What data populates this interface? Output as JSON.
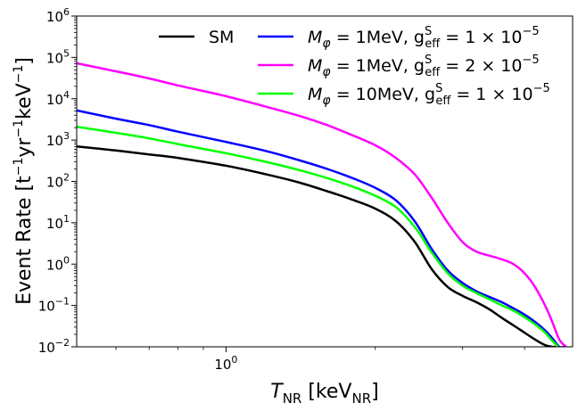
{
  "chart_data": {
    "type": "line",
    "title": "",
    "xlabel": "T_NR [keV_NR]",
    "xlabel_parts": {
      "var": "T",
      "var_sub": "NR",
      "unit": "keV",
      "unit_sub": "NR"
    },
    "ylabel": "Event Rate [t^-1 yr^-1 keV^-1]",
    "xscale": "log",
    "yscale": "log",
    "xlim": [
      0.5,
      5.0
    ],
    "ylim": [
      0.01,
      1000000
    ],
    "x_major_ticks": [
      {
        "value": 1,
        "label": "10",
        "sup": "0"
      }
    ],
    "y_major_ticks": [
      {
        "value": 0.01,
        "label": "10",
        "sup": "−2"
      },
      {
        "value": 0.1,
        "label": "10",
        "sup": "−1"
      },
      {
        "value": 1,
        "label": "10",
        "sup": "0"
      },
      {
        "value": 10,
        "label": "10",
        "sup": "1"
      },
      {
        "value": 100,
        "label": "10",
        "sup": "2"
      },
      {
        "value": 1000,
        "label": "10",
        "sup": "3"
      },
      {
        "value": 10000,
        "label": "10",
        "sup": "4"
      },
      {
        "value": 100000,
        "label": "10",
        "sup": "5"
      },
      {
        "value": 1000000,
        "label": "10",
        "sup": "6"
      }
    ],
    "legend_position": "top-right",
    "series": [
      {
        "name": "SM",
        "color": "#000000",
        "label_parts": {
          "text": "SM"
        },
        "x": [
          0.5,
          0.6,
          0.7,
          0.8,
          1.0,
          1.2,
          1.4,
          1.6,
          1.8,
          2.0,
          2.2,
          2.4,
          2.6,
          2.8,
          3.0,
          3.2,
          3.4,
          3.6,
          3.8,
          4.0,
          4.2,
          4.4,
          4.55,
          4.62
        ],
        "y": [
          700,
          560,
          450,
          370,
          240,
          150,
          95,
          58,
          36,
          22,
          11,
          3.5,
          0.75,
          0.28,
          0.17,
          0.12,
          0.08,
          0.05,
          0.033,
          0.022,
          0.015,
          0.011,
          0.01,
          0.01
        ]
      },
      {
        "name": "M_φ = 1MeV, g_eff^S = 1 × 10^-5",
        "color": "#0000ff",
        "label_parts": {
          "mass": "1MeV",
          "coef": "1",
          "exp": "−5"
        },
        "x": [
          0.5,
          0.6,
          0.7,
          0.8,
          1.0,
          1.2,
          1.4,
          1.6,
          1.8,
          2.0,
          2.2,
          2.4,
          2.6,
          2.8,
          3.0,
          3.2,
          3.4,
          3.6,
          3.8,
          4.0,
          4.2,
          4.4,
          4.55,
          4.7,
          4.8
        ],
        "y": [
          5200,
          3300,
          2300,
          1600,
          900,
          550,
          330,
          200,
          120,
          70,
          35,
          11,
          2.3,
          0.7,
          0.35,
          0.22,
          0.16,
          0.12,
          0.085,
          0.06,
          0.04,
          0.025,
          0.016,
          0.01,
          0.01
        ]
      },
      {
        "name": "M_φ = 1MeV, g_eff^S = 2 × 10^-5",
        "color": "#ff00ff",
        "label_parts": {
          "mass": "1MeV",
          "coef": "2",
          "exp": "−5"
        },
        "x": [
          0.5,
          0.6,
          0.7,
          0.8,
          1.0,
          1.2,
          1.4,
          1.6,
          1.8,
          2.0,
          2.2,
          2.4,
          2.6,
          2.8,
          3.0,
          3.2,
          3.4,
          3.6,
          3.8,
          4.0,
          4.2,
          4.4,
          4.55,
          4.7,
          4.85
        ],
        "y": [
          72000,
          46000,
          31000,
          21000,
          11500,
          6500,
          3900,
          2300,
          1300,
          750,
          370,
          150,
          40,
          10,
          3.4,
          2.0,
          1.6,
          1.3,
          1.0,
          0.6,
          0.28,
          0.1,
          0.04,
          0.015,
          0.01
        ]
      },
      {
        "name": "M_φ = 10MeV, g_eff^S = 1 × 10^-5",
        "color": "#00ff00",
        "label_parts": {
          "mass": "10MeV",
          "coef": "1",
          "exp": "−5"
        },
        "x": [
          0.5,
          0.6,
          0.7,
          0.8,
          1.0,
          1.2,
          1.4,
          1.6,
          1.8,
          2.0,
          2.2,
          2.4,
          2.6,
          2.8,
          3.0,
          3.2,
          3.4,
          3.6,
          3.8,
          4.0,
          4.2,
          4.4,
          4.55,
          4.68
        ],
        "y": [
          2100,
          1500,
          1100,
          800,
          480,
          300,
          190,
          120,
          75,
          45,
          24,
          8,
          1.9,
          0.6,
          0.3,
          0.2,
          0.14,
          0.1,
          0.075,
          0.052,
          0.035,
          0.022,
          0.014,
          0.01
        ]
      }
    ]
  }
}
